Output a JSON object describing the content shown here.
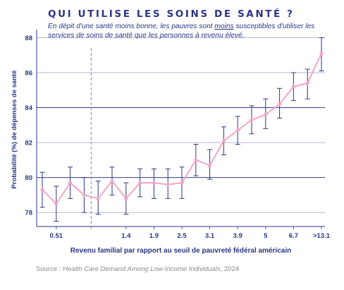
{
  "title": "QUI UTILISE LES SOINS DE SANTÉ ?",
  "subtitle": {
    "before": "En dépit d'une santé moins bonne, les pauvres sont ",
    "emphasis": "moins",
    "after": " susceptibles d'utiliser les services de soins de santé que les personnes à revenu élevé."
  },
  "source": {
    "prefix": "Source : ",
    "title": "Health Care Demand Among Low-Income Individuals",
    "suffix": ", 2024"
  },
  "colors": {
    "title": "#2b3585",
    "axis": "#2b3585",
    "gridline": "#2b3585",
    "errorbar": "#2b3585",
    "line": "#f4a6c8",
    "marker": "#f4a6c8",
    "divider": "#7b81b5"
  },
  "chart_data": {
    "type": "line",
    "xlabel": "Revenu familial par rapport au seuil de pauvreté fédéral américain",
    "ylabel": "Probabilité (%) de dépenses de santé",
    "ylim": [
      77.2,
      88.3
    ],
    "yticks": [
      78,
      80,
      82,
      84,
      86,
      88
    ],
    "grid": "horizontal",
    "x_tick_labels": [
      {
        "index": 1,
        "label": "0.51"
      },
      {
        "index": 6,
        "label": "1.4"
      },
      {
        "index": 8,
        "label": "1.9"
      },
      {
        "index": 10,
        "label": "2.5"
      },
      {
        "index": 12,
        "label": "3.1"
      },
      {
        "index": 14,
        "label": "3.9"
      },
      {
        "index": 16,
        "label": "5"
      },
      {
        "index": 18,
        "label": "6.7"
      },
      {
        "index": 20,
        "label": ">13.1"
      }
    ],
    "dashed_divider_after_index": 3,
    "series": [
      {
        "values": [
          79.3,
          78.5,
          79.7,
          79.0,
          78.8,
          79.8,
          78.8,
          79.7,
          79.7,
          79.6,
          79.7,
          81.0,
          80.7,
          82.1,
          82.7,
          83.3,
          83.6,
          84.2,
          85.2,
          85.4,
          87.1
        ],
        "lower": [
          78.3,
          77.5,
          78.8,
          78.0,
          77.9,
          79.0,
          77.9,
          78.9,
          78.8,
          78.8,
          78.8,
          80.1,
          79.9,
          81.3,
          81.9,
          82.5,
          82.8,
          83.4,
          84.4,
          84.5,
          86.1
        ],
        "upper": [
          80.3,
          79.5,
          80.6,
          80.0,
          79.8,
          80.6,
          79.7,
          80.5,
          80.5,
          80.5,
          80.6,
          81.9,
          81.6,
          82.9,
          83.5,
          84.1,
          84.5,
          85.1,
          86.0,
          86.2,
          88.0
        ]
      }
    ]
  }
}
